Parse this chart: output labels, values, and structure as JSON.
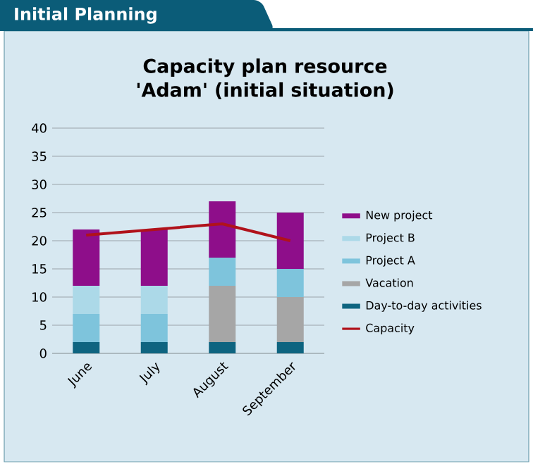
{
  "chart_data": {
    "type": "bar",
    "title": "Capacity plan resource 'Adam' (initial situation)",
    "annotations": [
      "Initial Planning"
    ],
    "categories": [
      "June",
      "July",
      "August",
      "September"
    ],
    "stacked": true,
    "series": [
      {
        "name": "Day-to-day activities",
        "color": "#0e6480",
        "values": [
          2,
          2,
          2,
          2
        ]
      },
      {
        "name": "Vacation",
        "color": "#a6a6a6",
        "values": [
          0,
          0,
          10,
          8
        ]
      },
      {
        "name": "Project A",
        "color": "#7ec4dc",
        "values": [
          5,
          5,
          5,
          5
        ]
      },
      {
        "name": "Project B",
        "color": "#acd9e8",
        "values": [
          5,
          5,
          0,
          0
        ]
      },
      {
        "name": "New project",
        "color": "#8e0e8a",
        "values": [
          10,
          10,
          10,
          10
        ]
      },
      {
        "name": "Capacity",
        "type": "line",
        "color": "#b0121b",
        "values": [
          21,
          22,
          23,
          20
        ]
      }
    ],
    "ylim": [
      0,
      40
    ],
    "yticks": [
      0,
      5,
      10,
      15,
      20,
      25,
      30,
      35,
      40
    ],
    "grid": "y",
    "legend": "right"
  }
}
